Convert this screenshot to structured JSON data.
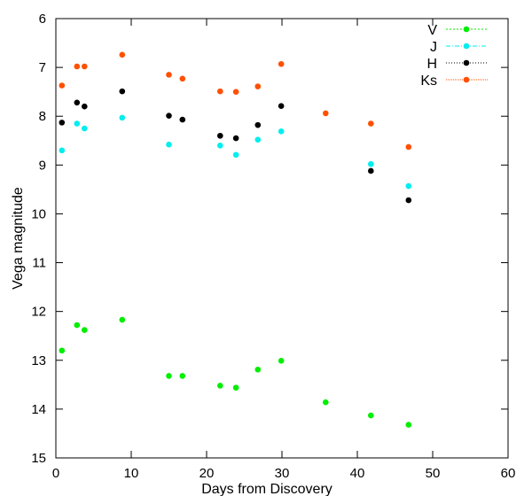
{
  "chart_data": {
    "type": "scatter",
    "title": "",
    "xlabel": "Days from Discovery",
    "ylabel": "Vega magnitude",
    "xlim": [
      0,
      60
    ],
    "ylim": [
      6,
      15
    ],
    "y_inverted": true,
    "x_ticks": [
      0,
      10,
      20,
      30,
      40,
      50,
      60
    ],
    "y_ticks": [
      6,
      7,
      8,
      9,
      10,
      11,
      12,
      13,
      14,
      15
    ],
    "grid": false,
    "legend_position": "top-right",
    "series": [
      {
        "name": "V",
        "color": "#00ee00",
        "points": [
          [
            0.8,
            12.8
          ],
          [
            2.8,
            12.28
          ],
          [
            3.8,
            12.38
          ],
          [
            8.8,
            12.17
          ],
          [
            15.0,
            13.32
          ],
          [
            16.8,
            13.32
          ],
          [
            21.8,
            13.52
          ],
          [
            23.9,
            13.56
          ],
          [
            26.8,
            13.19
          ],
          [
            29.9,
            13.01
          ],
          [
            35.8,
            13.86
          ],
          [
            41.8,
            14.13
          ],
          [
            46.8,
            14.32
          ]
        ]
      },
      {
        "name": "J",
        "color": "#00eeee",
        "points": [
          [
            0.8,
            8.7
          ],
          [
            2.8,
            8.15
          ],
          [
            3.8,
            8.25
          ],
          [
            8.8,
            8.03
          ],
          [
            15.0,
            8.58
          ],
          [
            21.8,
            8.6
          ],
          [
            23.9,
            8.79
          ],
          [
            26.8,
            8.48
          ],
          [
            29.9,
            8.31
          ],
          [
            41.8,
            8.98
          ],
          [
            46.8,
            9.43
          ]
        ]
      },
      {
        "name": "H",
        "color": "#000000",
        "points": [
          [
            0.8,
            8.13
          ],
          [
            2.8,
            7.72
          ],
          [
            3.8,
            7.8
          ],
          [
            8.8,
            7.49
          ],
          [
            15.0,
            7.99
          ],
          [
            16.8,
            8.07
          ],
          [
            21.8,
            8.4
          ],
          [
            23.9,
            8.45
          ],
          [
            26.8,
            8.18
          ],
          [
            29.9,
            7.79
          ],
          [
            41.8,
            9.12
          ],
          [
            46.8,
            9.72
          ]
        ]
      },
      {
        "name": "Ks",
        "color": "#ff5000",
        "points": [
          [
            0.8,
            7.37
          ],
          [
            2.8,
            6.98
          ],
          [
            3.8,
            6.98
          ],
          [
            8.8,
            6.74
          ],
          [
            15.0,
            7.15
          ],
          [
            16.8,
            7.23
          ],
          [
            21.8,
            7.49
          ],
          [
            23.9,
            7.5
          ],
          [
            26.8,
            7.39
          ],
          [
            29.9,
            6.93
          ],
          [
            35.8,
            7.94
          ],
          [
            41.8,
            8.15
          ],
          [
            46.8,
            8.63
          ]
        ]
      }
    ]
  }
}
